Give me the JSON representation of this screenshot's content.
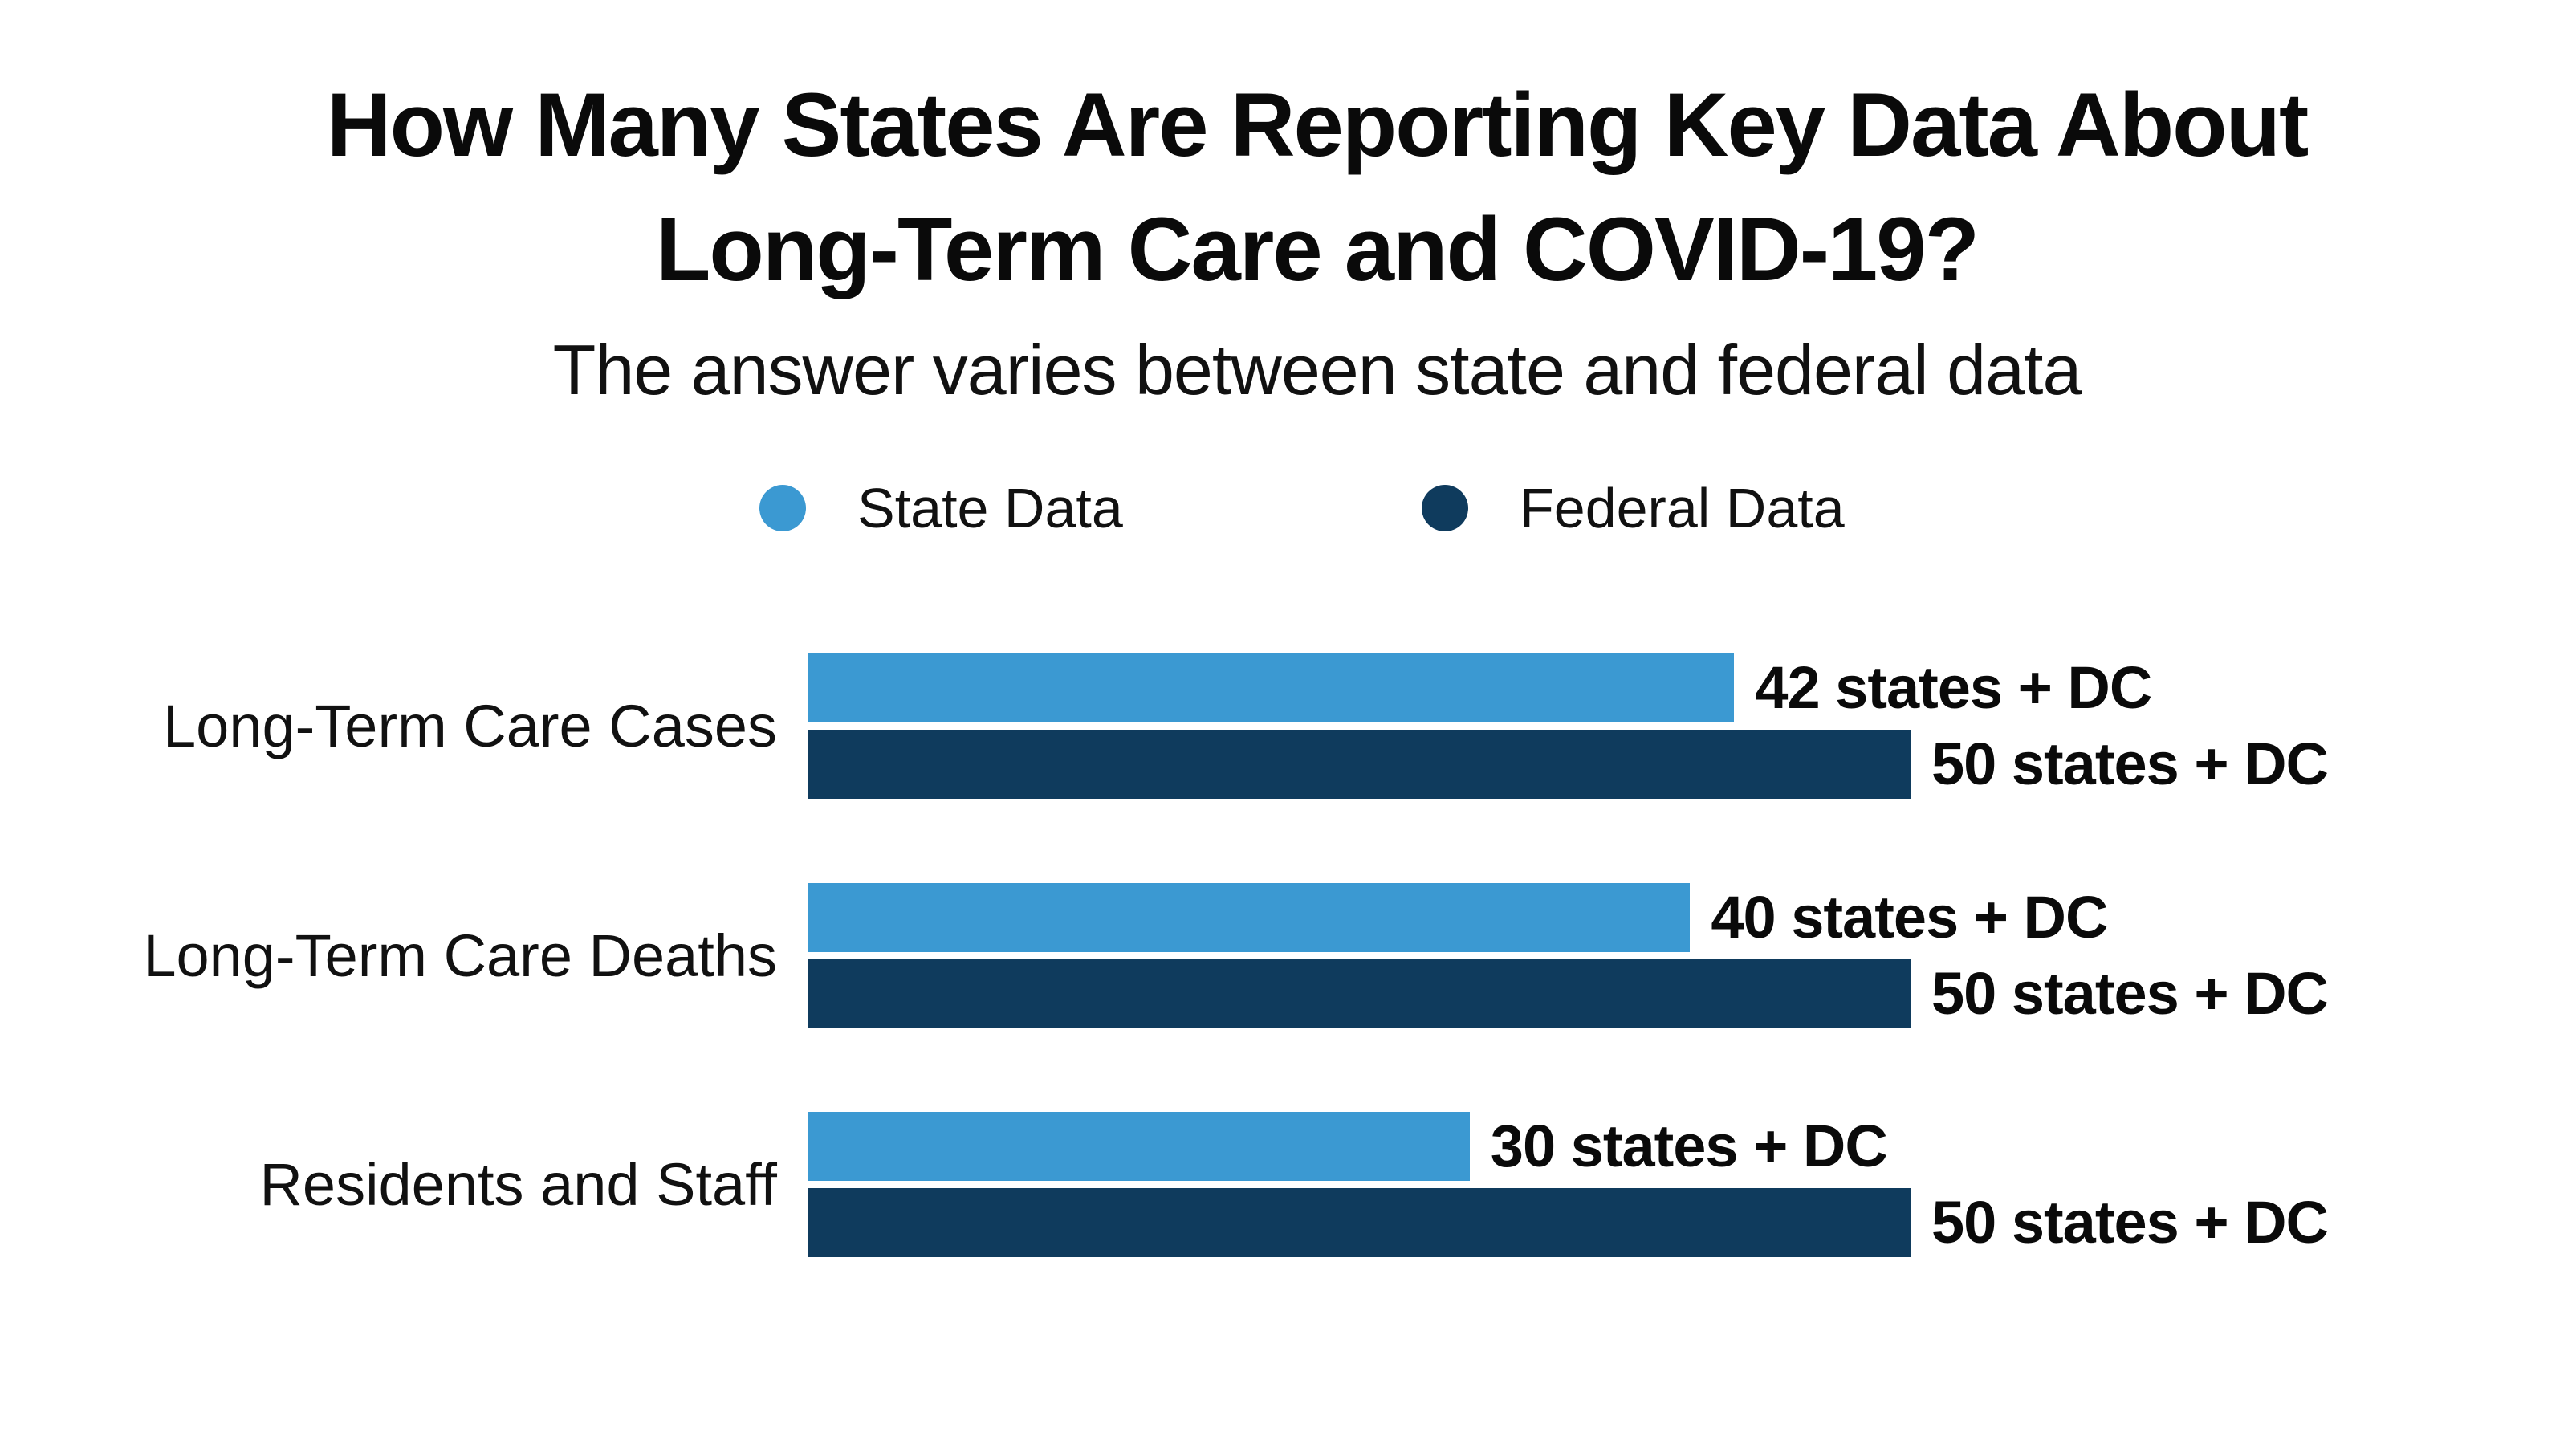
{
  "page": {
    "background": "#ffffff"
  },
  "header": {
    "title_line1": "How Many States Are Reporting Key Data About",
    "title_line2": "Long-Term Care and COVID-19?",
    "subtitle": "The answer varies between state and federal data"
  },
  "legend": {
    "items": [
      {
        "label": "State Data",
        "color": "#3B99D2"
      },
      {
        "label": "Federal Data",
        "color": "#0F3B5D"
      }
    ]
  },
  "chart_data": {
    "type": "bar",
    "orientation": "horizontal",
    "title": "How Many States Are Reporting Key Data About Long-Term Care and COVID-19?",
    "subtitle": "The answer varies between state and federal data",
    "categories": [
      "Long-Term Care Cases",
      "Long-Term Care Deaths",
      "Residents and Staff"
    ],
    "series": [
      {
        "name": "State Data",
        "color": "#3B99D2",
        "values": [
          42,
          40,
          30
        ],
        "value_labels": [
          "42 states + DC",
          "40 states + DC",
          "30 states + DC"
        ]
      },
      {
        "name": "Federal Data",
        "color": "#0F3B5D",
        "values": [
          50,
          50,
          50
        ],
        "value_labels": [
          "50 states + DC",
          "50 states + DC",
          "50 states + DC"
        ]
      }
    ],
    "axis_max": 50,
    "grid": false,
    "axis_ticks_visible": false,
    "legend_position": "top-center",
    "value_label_style": "bold-right-of-bar"
  }
}
